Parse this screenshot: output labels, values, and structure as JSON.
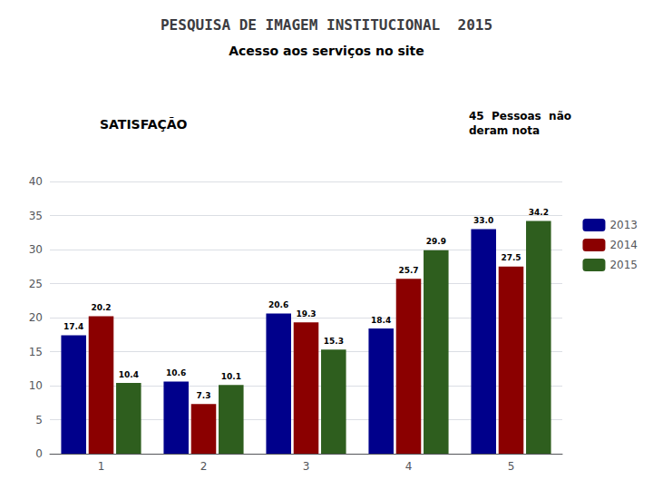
{
  "chart_data": {
    "type": "bar",
    "title": "PESQUISA DE IMAGEM INSTITUCIONAL  2015",
    "subtitle": "Acesso aos serviços no site",
    "annotations": [
      "SATISFAÇÃO",
      "45  Pessoas  não\nderam nota"
    ],
    "categories": [
      "1",
      "2",
      "3",
      "4",
      "5"
    ],
    "series": [
      {
        "name": "2013",
        "color": "#00008B",
        "values": [
          17.4,
          10.6,
          20.6,
          18.4,
          33.0
        ],
        "value_labels": [
          "17.4",
          "10.6",
          "20.6",
          "18.4",
          "33.0"
        ]
      },
      {
        "name": "2014",
        "color": "#8B0000",
        "values": [
          20.2,
          7.3,
          19.3,
          25.7,
          27.5
        ],
        "value_labels": [
          "20.2",
          "7.3",
          "19.3",
          "25.7",
          "27.5"
        ]
      },
      {
        "name": "2015",
        "color": "#2E5E1E",
        "values": [
          10.4,
          10.1,
          15.3,
          29.9,
          34.2
        ],
        "value_labels": [
          "10.4",
          "10.1",
          "15.3",
          "29.9",
          "34.2"
        ]
      }
    ],
    "ylim": [
      0,
      40
    ],
    "yticks": [
      0,
      5,
      10,
      15,
      20,
      25,
      30,
      35,
      40
    ],
    "grid": true,
    "legend": "right",
    "data_labels": true
  }
}
